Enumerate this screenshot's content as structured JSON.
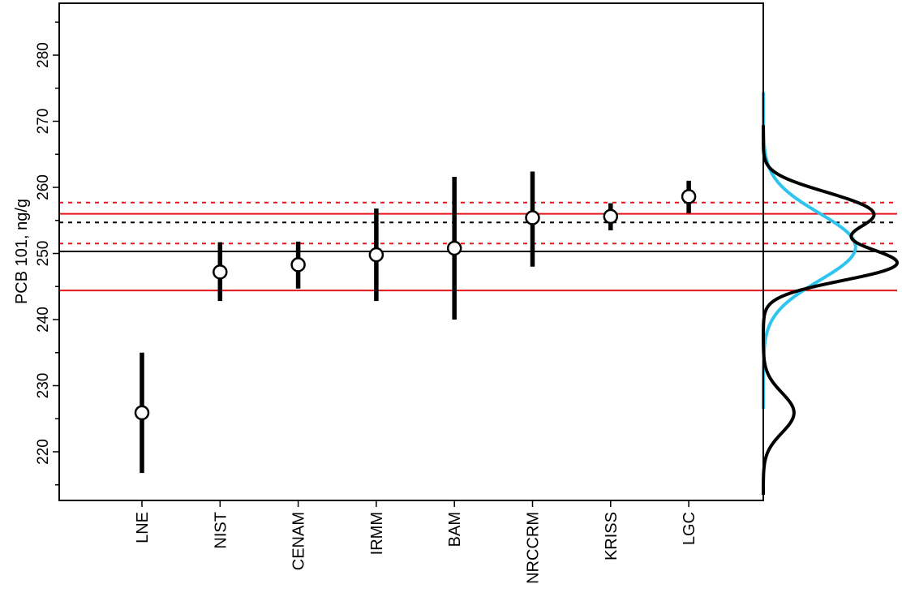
{
  "chart_data": {
    "type": "scatter",
    "title": "",
    "ylabel": "PCB 101, ng/g",
    "xlabel": "",
    "ylim": [
      213,
      288
    ],
    "yticks": [
      220,
      230,
      240,
      250,
      260,
      270,
      280
    ],
    "categories": [
      "LNE",
      "NIST",
      "CENAM",
      "IRMM",
      "BAM",
      "NRCCRM",
      "KRISS",
      "LGC"
    ],
    "values": [
      225.9,
      247.2,
      248.3,
      249.8,
      250.8,
      255.4,
      255.6,
      258.6
    ],
    "lower": [
      216.8,
      242.8,
      244.7,
      242.8,
      240.0,
      248.0,
      253.5,
      256.1
    ],
    "upper": [
      235.0,
      251.7,
      251.8,
      256.8,
      261.6,
      262.4,
      257.6,
      261.0
    ],
    "reference_lines": [
      {
        "value": 250.3,
        "color": "#000000",
        "style": "solid"
      },
      {
        "value": 254.7,
        "color": "#000000",
        "style": "dotted"
      },
      {
        "value": 256.0,
        "color": "#e8141b",
        "style": "solid"
      },
      {
        "value": 244.4,
        "color": "#e8141b",
        "style": "solid"
      },
      {
        "value": 257.7,
        "color": "#e8141b",
        "style": "dotted"
      },
      {
        "value": 251.5,
        "color": "#e8141b",
        "style": "dotted"
      }
    ],
    "density_colors": {
      "mixture": "#000000",
      "normal": "#2ec4f0"
    },
    "normal_density": {
      "mean": 251.0,
      "sd": 5.1
    },
    "mixture_density_sd": 2.2,
    "grid": false
  }
}
